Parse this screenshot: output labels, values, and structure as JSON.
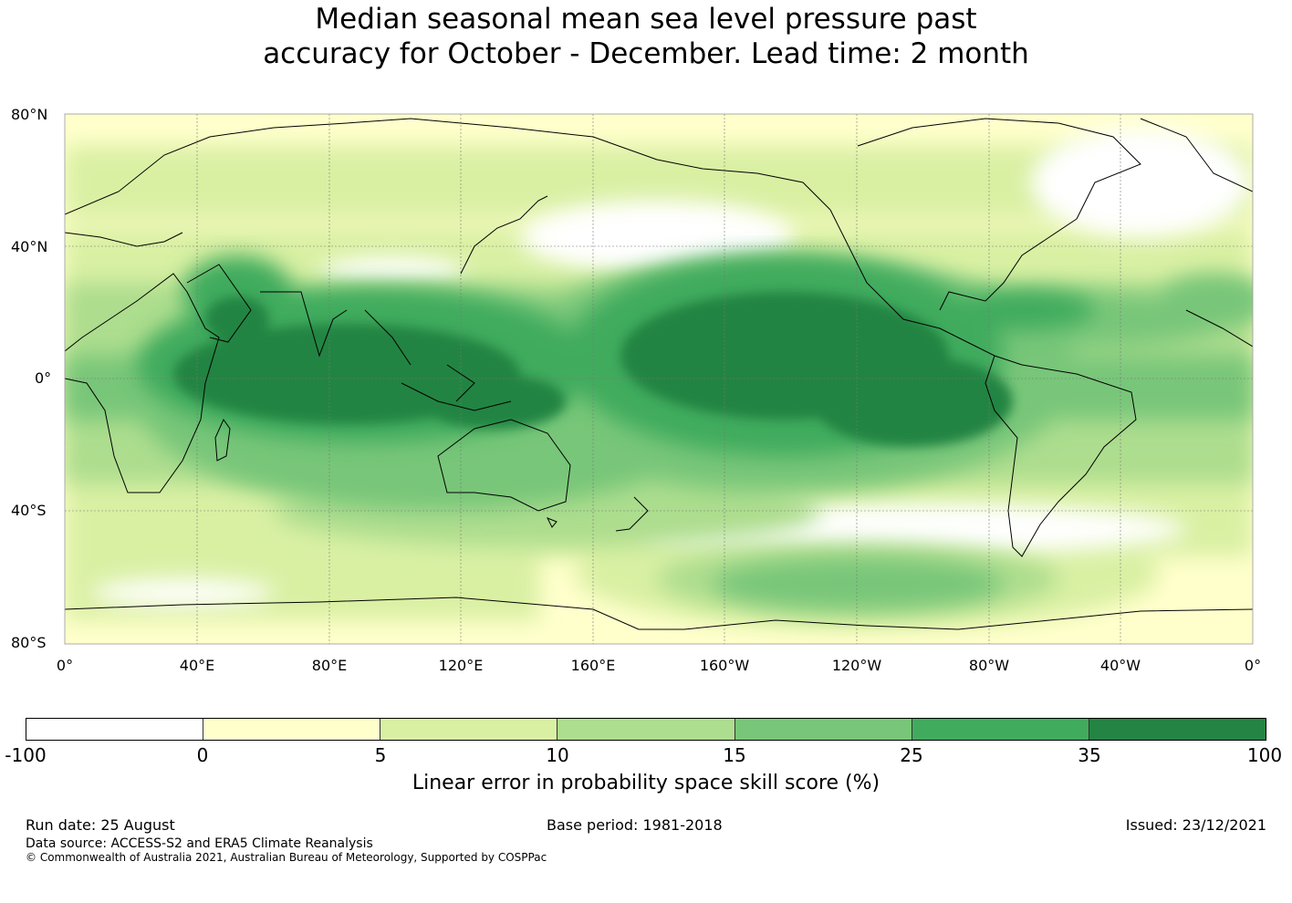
{
  "title": {
    "line1": "Median seasonal mean sea level pressure past",
    "line2": "accuracy for October - December. Lead time: 2 month"
  },
  "map": {
    "lat_labels": [
      "80°N",
      "40°N",
      "0°",
      "40°S",
      "80°S"
    ],
    "lon_labels": [
      "0°",
      "40°E",
      "80°E",
      "120°E",
      "160°E",
      "160°W",
      "120°W",
      "80°W",
      "40°W",
      "0°"
    ]
  },
  "colorbar": {
    "ticks": [
      "-100",
      "0",
      "5",
      "10",
      "15",
      "25",
      "35",
      "100"
    ],
    "colors": [
      "#ffffff",
      "#ffffcc",
      "#d9f0a3",
      "#addd8e",
      "#78c679",
      "#41ab5d",
      "#238443"
    ],
    "label": "Linear error in probability space skill score (%)"
  },
  "footer": {
    "run_date": "Run date: 25 August",
    "base_period": "Base period: 1981-2018",
    "issued": "Issued: 23/12/2021",
    "data_source": "Data source: ACCESS-S2 and ERA5 Climate Reanalysis",
    "copyright": "© Commonwealth of Australia 2021, Australian Bureau of Meteorology, Supported by COSPPac"
  }
}
